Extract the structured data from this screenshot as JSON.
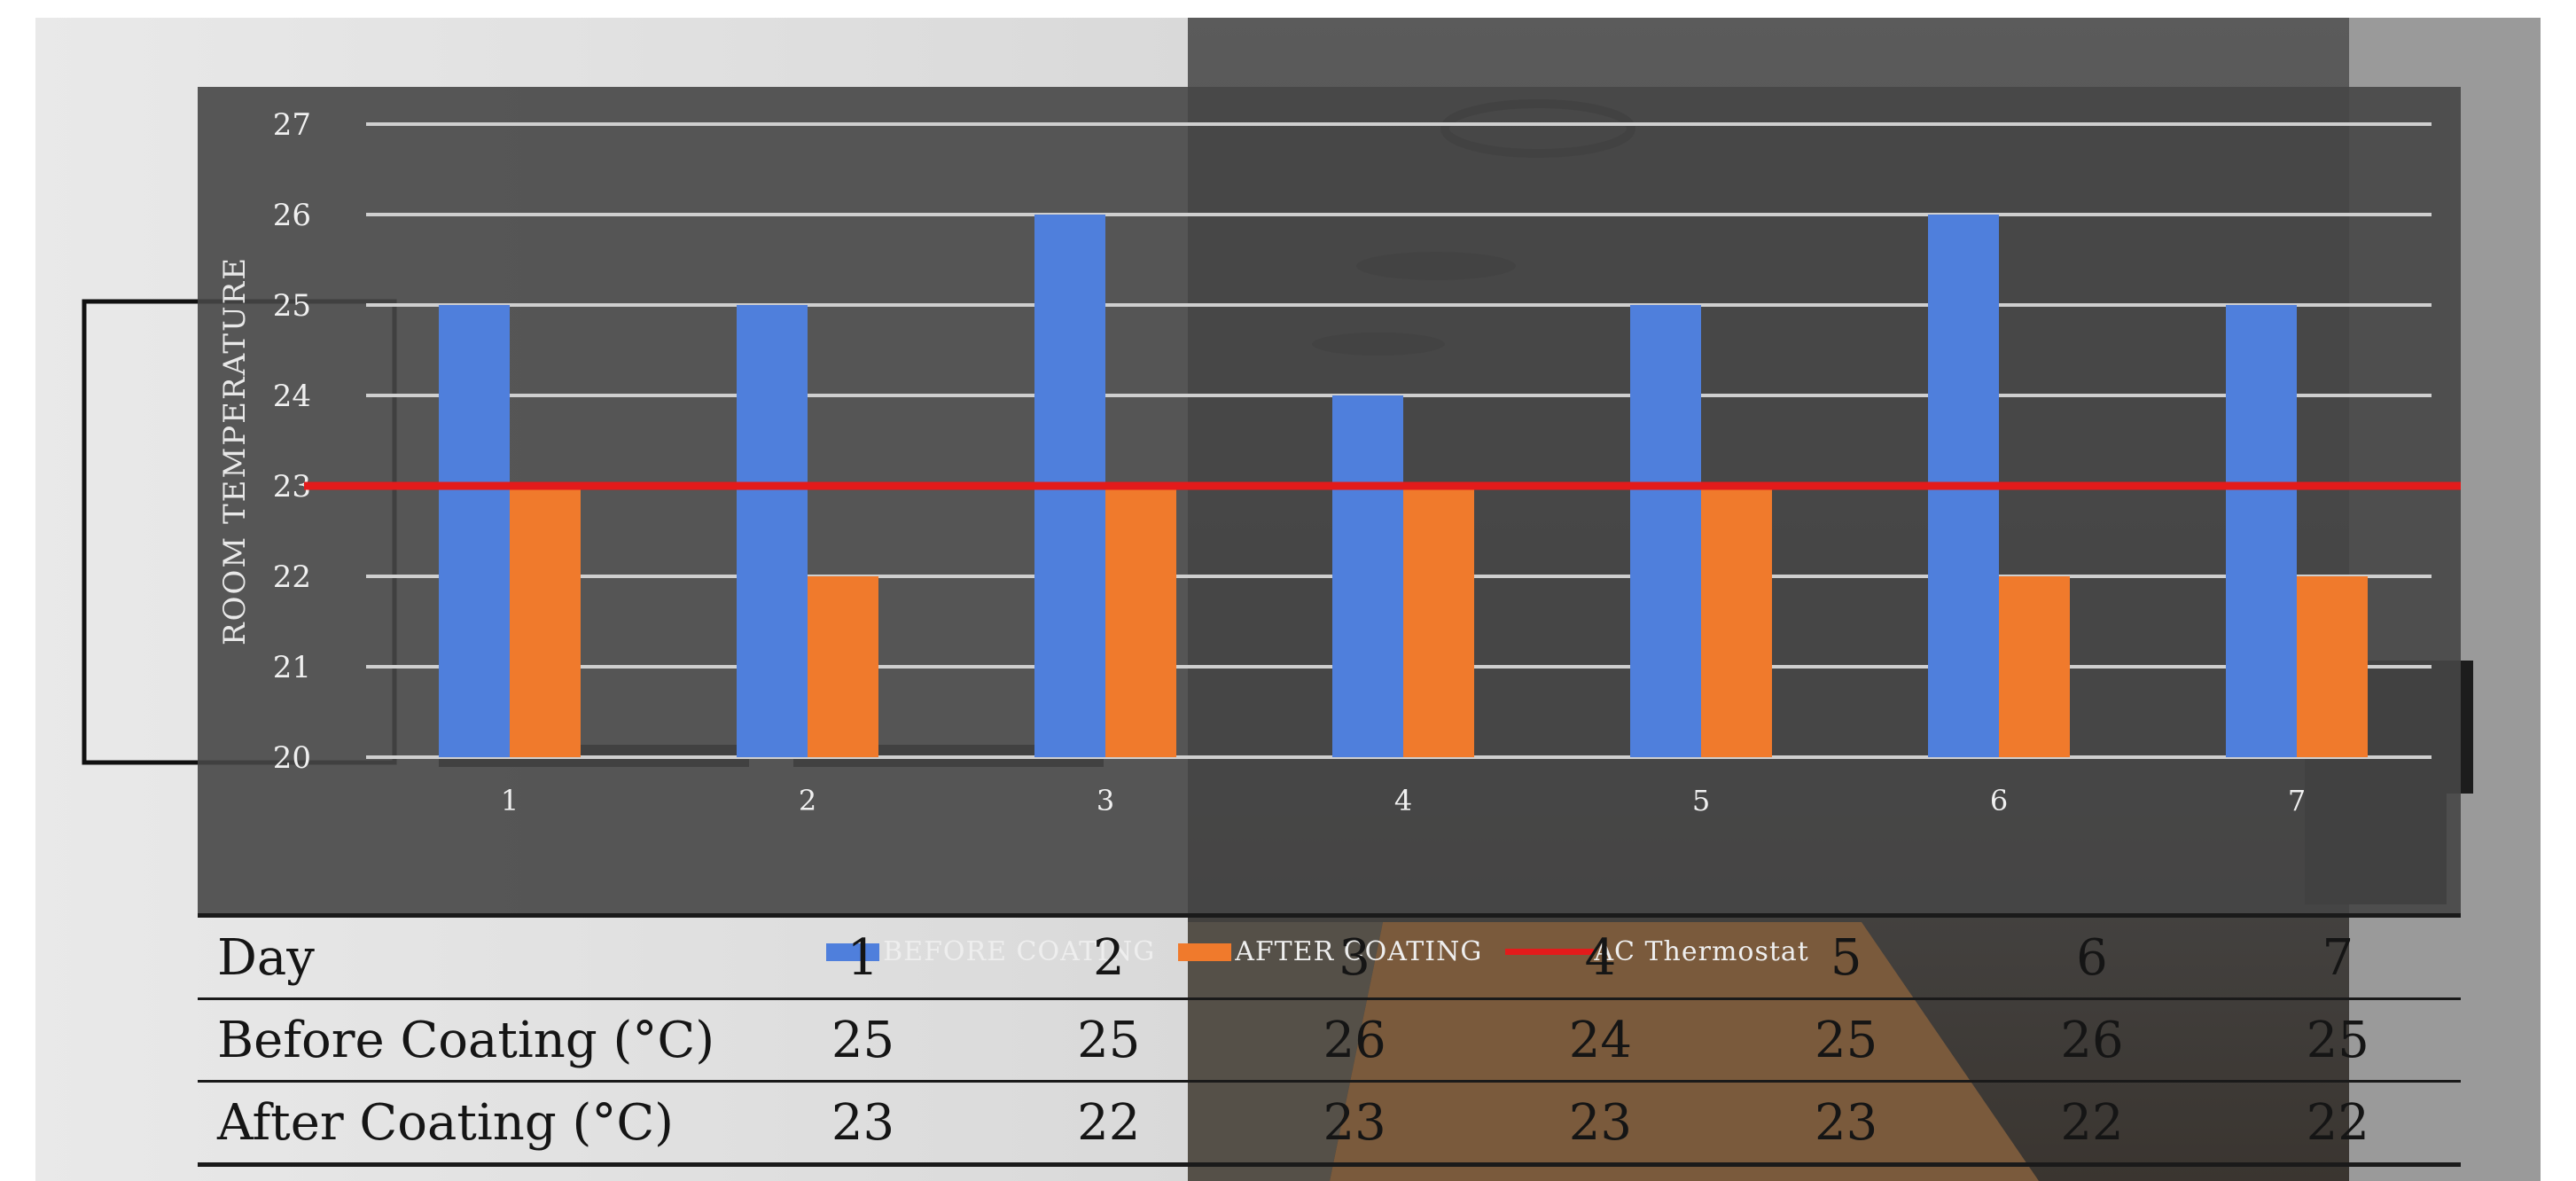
{
  "chart_data": {
    "type": "bar",
    "ylabel": "ROOM TEMPERATURE",
    "ylim": [
      20,
      27
    ],
    "yticks": [
      20,
      21,
      22,
      23,
      24,
      25,
      26,
      27
    ],
    "categories": [
      "1",
      "2",
      "3",
      "4",
      "5",
      "6",
      "7"
    ],
    "series": [
      {
        "name": "BEFORE COATING",
        "values": [
          25,
          25,
          26,
          24,
          25,
          26,
          25
        ],
        "color": "#4f7fdc"
      },
      {
        "name": "AFTER COATING",
        "values": [
          23,
          22,
          23,
          23,
          23,
          22,
          22
        ],
        "color": "#f07a2c"
      }
    ],
    "reference_line": {
      "name": "AC Thermostat",
      "value": 23,
      "color": "#e31b1b"
    },
    "grid": true,
    "legend_position": "bottom"
  },
  "table": {
    "header_label": "Day",
    "days": [
      "1",
      "2",
      "3",
      "4",
      "5",
      "6",
      "7"
    ],
    "rows": [
      {
        "label": "Before Coating (°C)",
        "values": [
          "25",
          "25",
          "26",
          "24",
          "25",
          "26",
          "25"
        ]
      },
      {
        "label": "After Coating (°C)",
        "values": [
          "23",
          "22",
          "23",
          "23",
          "23",
          "22",
          "22"
        ]
      }
    ]
  }
}
